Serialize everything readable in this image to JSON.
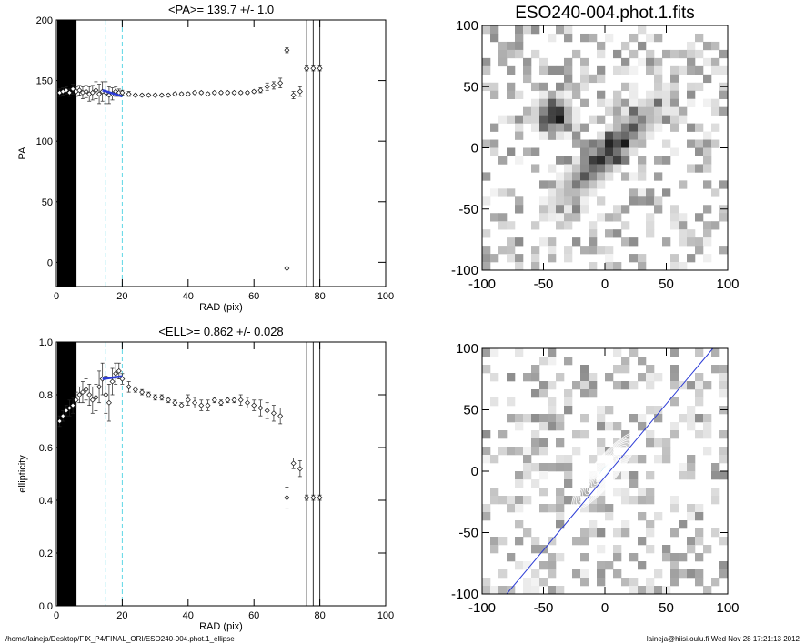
{
  "chart_data": [
    {
      "type": "scatter",
      "title": "<PA>= 139.7 +/-   1.0",
      "xlabel": "RAD (pix)",
      "ylabel": "PA",
      "xlim": [
        0,
        100
      ],
      "ylim": [
        -20,
        200
      ],
      "xticks": [
        0,
        20,
        40,
        60,
        80,
        100
      ],
      "yticks": [
        0,
        50,
        100,
        150,
        200
      ],
      "masked_region_x": [
        0,
        5
      ],
      "vlines_dashed_cyan": [
        15,
        20
      ],
      "vlines_solid": [
        76,
        78,
        80
      ],
      "series": [
        {
          "name": "PA profile",
          "x": [
            1,
            2,
            3,
            4,
            5,
            6,
            7,
            8,
            9,
            10,
            11,
            12,
            13,
            14,
            15,
            16,
            17,
            18,
            19,
            20,
            22,
            24,
            26,
            28,
            30,
            32,
            34,
            36,
            38,
            40,
            42,
            44,
            46,
            48,
            50,
            52,
            54,
            56,
            58,
            60,
            62,
            64,
            66,
            68,
            70,
            72,
            74,
            76,
            78,
            80
          ],
          "y": [
            140,
            141,
            142,
            140,
            143,
            141,
            142,
            140,
            141,
            139,
            140,
            142,
            139,
            141,
            140,
            138,
            139,
            141,
            140,
            140,
            139,
            138,
            138,
            138,
            138,
            138,
            138,
            139,
            139,
            139,
            140,
            140,
            139,
            140,
            140,
            140,
            140,
            140,
            140,
            141,
            142,
            145,
            146,
            148,
            175,
            138,
            141,
            160,
            160,
            160
          ],
          "errors": [
            3,
            3,
            3,
            3,
            4,
            4,
            4,
            5,
            5,
            6,
            6,
            7,
            8,
            8,
            9,
            7,
            5,
            4,
            3,
            2,
            2,
            1,
            1,
            1,
            1,
            1,
            1,
            1,
            1,
            1,
            1,
            1,
            1,
            1,
            1,
            1,
            1,
            1,
            1,
            1,
            2,
            3,
            3,
            4,
            2,
            3,
            4,
            2,
            2,
            2
          ]
        },
        {
          "name": "fit",
          "x": [
            14,
            20
          ],
          "y": [
            142,
            137
          ]
        },
        {
          "name": "outlier",
          "x": [
            70
          ],
          "y": [
            -5
          ]
        }
      ]
    },
    {
      "type": "image",
      "title": "ESO240-004.phot.1.fits",
      "xlim": [
        -100,
        100
      ],
      "ylim": [
        -100,
        100
      ],
      "ticks": [
        -100,
        -50,
        0,
        50,
        100
      ]
    },
    {
      "type": "scatter",
      "title": "<ELL>= 0.862 +/-  0.028",
      "xlabel": "RAD (pix)",
      "ylabel": "ellipticity",
      "xlim": [
        0,
        100
      ],
      "ylim": [
        0,
        1
      ],
      "xticks": [
        0,
        20,
        40,
        60,
        80,
        100
      ],
      "yticks": [
        0.0,
        0.2,
        0.4,
        0.6,
        0.8,
        1.0
      ],
      "ytick_labels": [
        "0.0",
        "0.2",
        "0.4",
        "0.6",
        "0.8",
        "1.0"
      ],
      "masked_region_x": [
        0,
        5
      ],
      "vlines_dashed_cyan": [
        15,
        20
      ],
      "vlines_solid": [
        76,
        78,
        80
      ],
      "series": [
        {
          "name": "ellipticity profile",
          "x": [
            1,
            2,
            3,
            4,
            5,
            6,
            7,
            8,
            9,
            10,
            11,
            12,
            13,
            14,
            15,
            16,
            17,
            18,
            19,
            20,
            22,
            24,
            26,
            28,
            30,
            32,
            34,
            36,
            38,
            40,
            42,
            44,
            46,
            48,
            50,
            52,
            54,
            56,
            58,
            60,
            62,
            64,
            66,
            68,
            70,
            72,
            74,
            76,
            78,
            80
          ],
          "y": [
            0.7,
            0.72,
            0.74,
            0.75,
            0.76,
            0.78,
            0.8,
            0.81,
            0.82,
            0.8,
            0.78,
            0.79,
            0.83,
            0.86,
            0.8,
            0.77,
            0.85,
            0.88,
            0.89,
            0.86,
            0.83,
            0.82,
            0.81,
            0.8,
            0.79,
            0.79,
            0.78,
            0.77,
            0.76,
            0.78,
            0.77,
            0.76,
            0.76,
            0.78,
            0.77,
            0.78,
            0.78,
            0.78,
            0.77,
            0.76,
            0.75,
            0.74,
            0.73,
            0.72,
            0.41,
            0.54,
            0.52,
            0.41,
            0.41,
            0.41
          ],
          "errors": [
            0.02,
            0.02,
            0.02,
            0.03,
            0.03,
            0.03,
            0.03,
            0.04,
            0.04,
            0.04,
            0.05,
            0.05,
            0.06,
            0.06,
            0.07,
            0.07,
            0.05,
            0.04,
            0.03,
            0.02,
            0.02,
            0.01,
            0.01,
            0.01,
            0.01,
            0.01,
            0.01,
            0.01,
            0.01,
            0.02,
            0.02,
            0.02,
            0.02,
            0.01,
            0.01,
            0.01,
            0.01,
            0.02,
            0.02,
            0.02,
            0.03,
            0.03,
            0.03,
            0.03,
            0.04,
            0.02,
            0.03,
            0.01,
            0.01,
            0.01
          ]
        },
        {
          "name": "fit",
          "x": [
            14,
            20
          ],
          "y": [
            0.86,
            0.87
          ]
        }
      ]
    },
    {
      "type": "image",
      "title": "",
      "xlim": [
        -100,
        100
      ],
      "ylim": [
        -100,
        100
      ],
      "ticks": [
        -100,
        -50,
        0,
        50,
        100
      ],
      "overlay": "isophote ellipse contours with fitted major-axis line"
    }
  ],
  "footer": {
    "left": "/home/laineja/Desktop/FIX_P4/FINAL_ORI/ESO240-004.phot.1_ellipse",
    "right": "laineja@hiisi.oulu.fi  Wed Nov 28 17:21:13 2012"
  }
}
